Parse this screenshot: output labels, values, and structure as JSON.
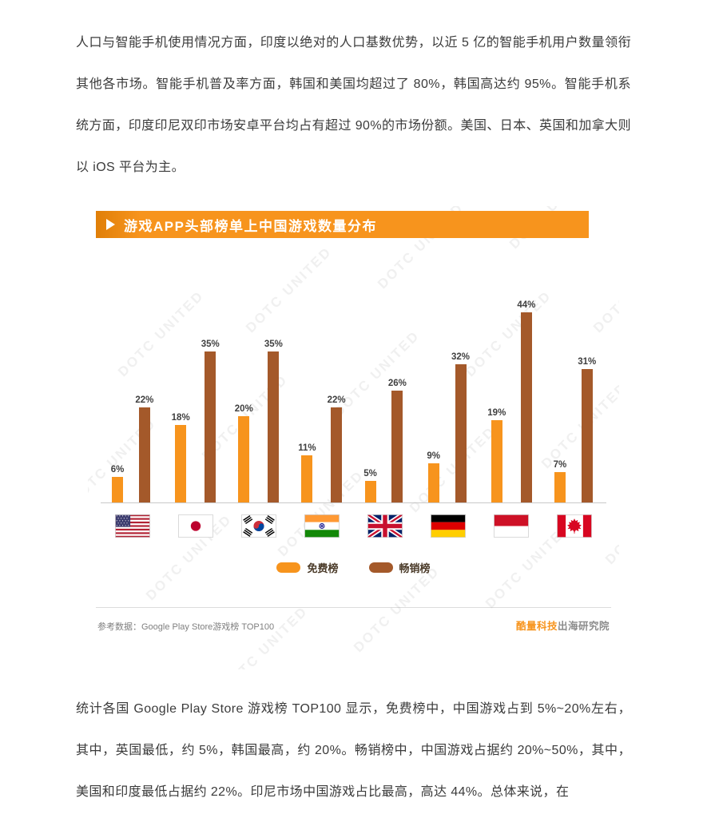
{
  "paragraphs": {
    "top": "人口与智能手机使用情况方面，印度以绝对的人口基数优势，以近 5 亿的智能手机用户数量领衔其他各市场。智能手机普及率方面，韩国和美国均超过了 80%，韩国高达约 95%。智能手机系统方面，印度印尼双印市场安卓平台均占有超过 90%的市场份额。美国、日本、英国和加拿大则以 iOS 平台为主。",
    "bottom": "统计各国 Google Play Store 游戏榜 TOP100 显示，免费榜中，中国游戏占到 5%~20%左右，其中，英国最低，约 5%，韩国最高，约 20%。畅销榜中，中国游戏占据约 20%~50%，其中，美国和印度最低占据约 22%。印尼市场中国游戏占比最高，高达 44%。总体来说，在"
  },
  "chart": {
    "title": "游戏APP头部榜单上中国游戏数量分布",
    "source": "参考数据：Google Play Store游戏榜 TOP100",
    "brand_orange": "酷量科技",
    "brand_gray": "出海研究院",
    "watermark": "DOTC UNITED",
    "accent_color": "#f7941d"
  },
  "chart_data": {
    "type": "bar",
    "title": "游戏APP头部榜单上中国游戏数量分布",
    "categories": [
      "United States",
      "Japan",
      "South Korea",
      "India",
      "United Kingdom",
      "Germany",
      "Indonesia",
      "Canada"
    ],
    "category_flags": [
      "us",
      "jp",
      "kr",
      "in",
      "gb",
      "de",
      "id",
      "ca"
    ],
    "series": [
      {
        "name": "免费榜",
        "color": "#f7941d",
        "values": [
          6,
          18,
          20,
          11,
          5,
          9,
          19,
          7
        ]
      },
      {
        "name": "畅销榜",
        "color": "#a4592a",
        "values": [
          22,
          35,
          35,
          22,
          26,
          32,
          44,
          31
        ]
      }
    ],
    "value_suffix": "%",
    "ylim": [
      0,
      50
    ],
    "grid": false,
    "legend_position": "bottom",
    "source": "参考数据：Google Play Store游戏榜 TOP100"
  }
}
